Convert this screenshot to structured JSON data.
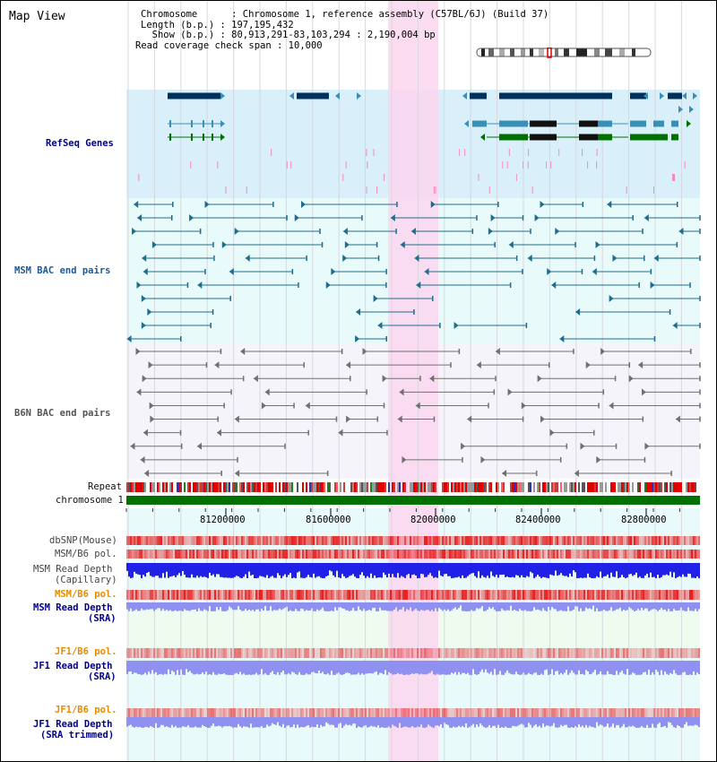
{
  "view_title": "Map View",
  "info": {
    "chromosome_line": "Chromosome      : Chromosome 1, reference assembly (C57BL/6J) (Build 37)",
    "length_line": "Length (b.p.) : 197,195,432",
    "show_line": "  Show (b.p.) : 80,913,291-83,103,294 : 2,190,004 bp",
    "coverage_line": "Read coverage check span : 10,000"
  },
  "tracks": {
    "refseq_genes": "RefSeq Genes",
    "msm_bac": "MSM BAC end pairs",
    "b6n_bac": "B6N BAC end pairs",
    "repeat": "Repeat",
    "chromosome": "chromosome 1",
    "dbsnp": "dbSNP(Mouse)",
    "msm_b6_pol_1": "MSM/B6 pol.",
    "msm_read_depth_cap_1": "MSM Read Depth",
    "msm_read_depth_cap_2": "(Capillary)",
    "msm_b6_pol_2": "MSM/B6 pol.",
    "msm_read_depth_sra_1": "MSM Read Depth",
    "msm_read_depth_sra_2": "(SRA)",
    "jf1_b6_pol_1": "JF1/B6 pol.",
    "jf1_read_depth_sra_1": "JF1 Read Depth",
    "jf1_read_depth_sra_2": "(SRA)",
    "jf1_b6_pol_2": "JF1/B6 pol.",
    "jf1_read_depth_trim_1": "JF1 Read Depth",
    "jf1_read_depth_trim_2": "(SRA trimmed)"
  },
  "axis_ticks": [
    "81200000",
    "81600000",
    "82000000",
    "82400000",
    "82800000"
  ],
  "colors": {
    "refseq_bg": "#d9f0fa",
    "msm_bg": "#e8fafa",
    "b6n_bg": "#f4f4fa",
    "highlight": "#fbd6ee",
    "gene_navy": "#00305e",
    "gene_teal": "#3a8fb7",
    "gene_green": "#007000",
    "msm_line": "#1f6d8c",
    "b6n_line": "#707070",
    "chrom_green": "#007000",
    "depth_blue": "#2020e6",
    "depth_light": "#9090f0"
  }
}
